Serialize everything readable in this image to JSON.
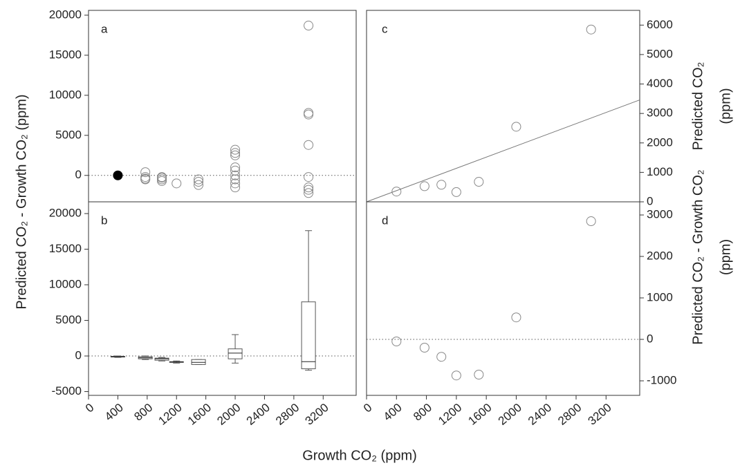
{
  "figure": {
    "xlabel": "Growth CO₂ (ppm)",
    "ylabel_left": "Predicted CO₂ - Growth CO₂ (ppm)"
  },
  "chart_data": [
    {
      "type": "scatter",
      "panel_label": "a",
      "axis_side": "left",
      "xlim": [
        0,
        3650
      ],
      "ylim": [
        -3300,
        20600
      ],
      "yticks": [
        0,
        5000,
        10000,
        15000,
        20000
      ],
      "zero_line": 0,
      "series": [
        {
          "color": "#888888",
          "filled": false,
          "x": [
            775,
            775,
            775,
            775,
            1000,
            1000,
            1000,
            1000,
            1200,
            1500,
            1500,
            1500,
            2000,
            2000,
            2000,
            2000,
            2000,
            2000,
            2000,
            2000,
            2000,
            3000,
            3000,
            3000,
            3000,
            3000,
            3000,
            3000,
            3000
          ],
          "values": [
            400,
            -200,
            -500,
            -400,
            -200,
            -500,
            -700,
            -300,
            -1000,
            -500,
            -800,
            -1200,
            3200,
            2800,
            2500,
            1000,
            600,
            0,
            -500,
            -1000,
            -1500,
            18700,
            7800,
            7600,
            3800,
            -200,
            -1500,
            -1800,
            -2200
          ]
        },
        {
          "color": "#000000",
          "filled": true,
          "x": [
            400
          ],
          "values": [
            0
          ]
        }
      ]
    },
    {
      "type": "box",
      "panel_label": "b",
      "axis_side": "left",
      "xlim": [
        0,
        3650
      ],
      "ylim": [
        -5530,
        21650
      ],
      "xticks": [
        0,
        400,
        800,
        1200,
        1600,
        2000,
        2400,
        2800,
        3200
      ],
      "yticks": [
        -5000,
        0,
        5000,
        10000,
        15000,
        20000
      ],
      "zero_line": 0,
      "color": "#555555",
      "boxes": [
        {
          "x": 400,
          "whisker_low": -200,
          "q1": -150,
          "median": -100,
          "q3": -50,
          "whisker_high": 0
        },
        {
          "x": 775,
          "whisker_low": -500,
          "q1": -400,
          "median": -250,
          "q3": -100,
          "whisker_high": 0
        },
        {
          "x": 1000,
          "whisker_low": -700,
          "q1": -600,
          "median": -400,
          "q3": -300,
          "whisker_high": -200
        },
        {
          "x": 1200,
          "whisker_low": -1000,
          "q1": -900,
          "median": -850,
          "q3": -800,
          "whisker_high": -700
        },
        {
          "x": 1500,
          "whisker_low": -1200,
          "q1": -1200,
          "median": -900,
          "q3": -500,
          "whisker_high": -500
        },
        {
          "x": 2000,
          "whisker_low": -1000,
          "q1": -400,
          "median": 400,
          "q3": 1000,
          "whisker_high": 3000
        },
        {
          "x": 3000,
          "whisker_low": -2000,
          "q1": -1800,
          "median": -800,
          "q3": 7600,
          "whisker_high": 17600
        }
      ]
    },
    {
      "type": "scatter",
      "panel_label": "c",
      "axis_side": "right",
      "xlim": [
        0,
        3650
      ],
      "ylim": [
        0,
        6500
      ],
      "yticks": [
        0,
        1000,
        2000,
        3000,
        4000,
        5000,
        6000
      ],
      "ylabel": [
        "Predicted CO₂",
        "(ppm)"
      ],
      "series": [
        {
          "color": "#888888",
          "filled": false,
          "x": [
            400,
            775,
            1000,
            1200,
            1500,
            2000,
            3000
          ],
          "values": [
            350,
            530,
            580,
            330,
            680,
            2550,
            5850
          ]
        },
        {
          "type": "line",
          "color": "#777777",
          "x": [
            0,
            3650
          ],
          "values": [
            0,
            3460
          ]
        }
      ]
    },
    {
      "type": "scatter",
      "panel_label": "d",
      "axis_side": "right",
      "xlim": [
        0,
        3650
      ],
      "ylim": [
        -1350,
        3317
      ],
      "xticks": [
        0,
        400,
        800,
        1200,
        1600,
        2000,
        2400,
        2800,
        3200
      ],
      "yticks": [
        -1000,
        0,
        1000,
        2000,
        3000
      ],
      "zero_line": 0,
      "ylabel": [
        "Predicted CO₂ - Growth CO₂",
        "(ppm)"
      ],
      "series": [
        {
          "color": "#888888",
          "filled": false,
          "x": [
            400,
            775,
            1000,
            1200,
            1500,
            2000,
            3000
          ],
          "values": [
            -50,
            -200,
            -420,
            -870,
            -850,
            530,
            2850
          ]
        }
      ]
    }
  ]
}
